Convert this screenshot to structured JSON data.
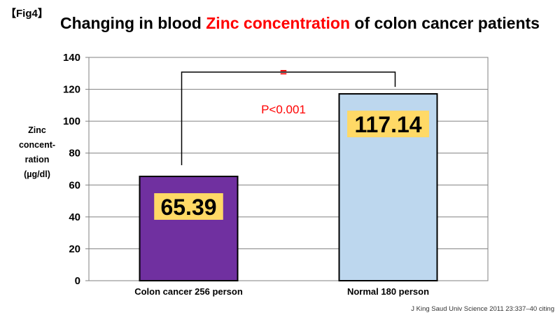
{
  "fig_tag": "【Fig4】",
  "title": {
    "prefix": "Changing in blood ",
    "highlight": "Zinc concentration",
    "suffix": " of colon cancer patients"
  },
  "ylabel_lines": [
    "Zinc",
    "concent-",
    "ration",
    "(µg/dl)"
  ],
  "significance": {
    "mark": "=",
    "text": "P<0.001"
  },
  "citation": "J King Saud Univ Science 2011 23:337–40  citing",
  "colors": {
    "highlight": "#ff0000",
    "bar_cancer": "#7030a0",
    "bar_normal": "#bdd7ee",
    "label_bg": "#ffd966"
  },
  "chart_data": {
    "type": "bar",
    "categories": [
      "Colon cancer 256 person",
      "Normal 180 person"
    ],
    "values": [
      65.39,
      117.14
    ],
    "value_labels": [
      "65.39",
      "117.14"
    ],
    "ylim": [
      0,
      140
    ],
    "yticks": [
      "0",
      "20",
      "40",
      "60",
      "80",
      "100",
      "120",
      "140"
    ],
    "grid": true,
    "legend": "none"
  }
}
